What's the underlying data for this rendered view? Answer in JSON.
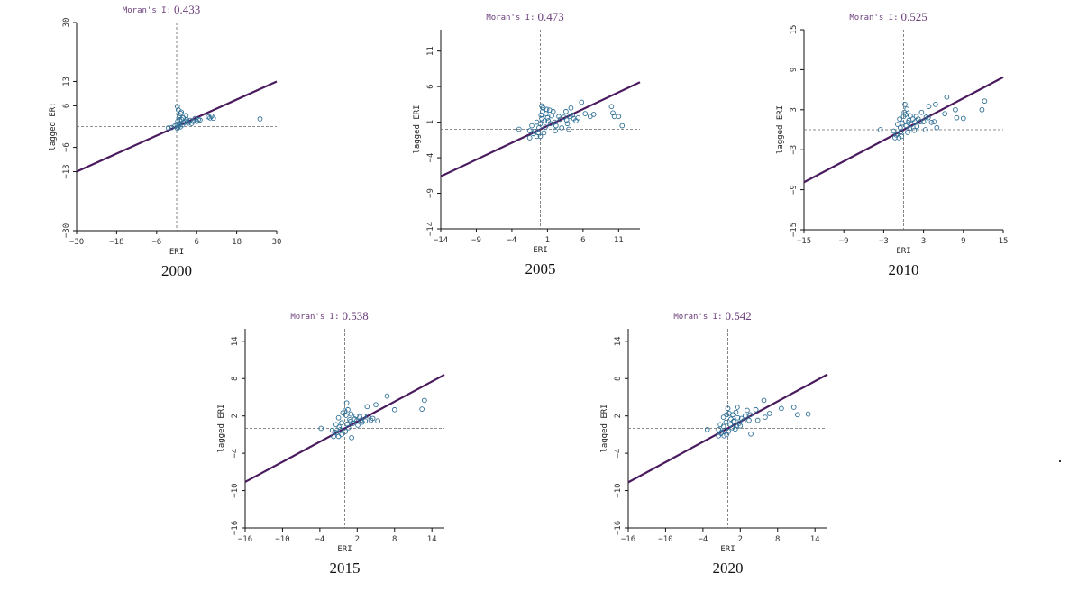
{
  "chart_data": [
    {
      "type": "scatter",
      "year": "2000",
      "title_label": "Moran's I:",
      "moran_i": "0.433",
      "xlabel": "ERI",
      "ylabel": "lagged ERI",
      "caption": "2000",
      "xlim": [
        -30,
        30
      ],
      "ylim": [
        -30,
        30
      ],
      "xticks": [
        -30,
        -18,
        -6,
        6,
        18,
        30
      ],
      "yticks": [
        -30,
        -13,
        -6,
        6,
        13,
        30
      ],
      "ytick_labels": [
        "-30",
        "-13",
        "-6",
        "6",
        "13",
        "30"
      ],
      "ylabel_display": "lagged ER:",
      "slope": 0.433,
      "points": [
        [
          0.2,
          5.8
        ],
        [
          0.5,
          4.8
        ],
        [
          1.2,
          3.8
        ],
        [
          0.8,
          3.2
        ],
        [
          2,
          2.5
        ],
        [
          1.5,
          2
        ],
        [
          3,
          2
        ],
        [
          2.5,
          1.6
        ],
        [
          4,
          1.8
        ],
        [
          5,
          1.5
        ],
        [
          6,
          1.5
        ],
        [
          9.5,
          2.8
        ],
        [
          10,
          2.5
        ],
        [
          11,
          2.4
        ],
        [
          10.5,
          3
        ],
        [
          0.3,
          1.5
        ],
        [
          0.1,
          0.6
        ],
        [
          0.6,
          0.3
        ],
        [
          1,
          0.9
        ],
        [
          -0.5,
          0.2
        ],
        [
          -1.5,
          -0.3
        ],
        [
          -2.5,
          -0.4
        ],
        [
          0.4,
          -0.2
        ],
        [
          1.8,
          0.5
        ],
        [
          3.5,
          1
        ],
        [
          4.5,
          0.9
        ],
        [
          2.2,
          1.1
        ],
        [
          6.5,
          2
        ],
        [
          7,
          1.9
        ],
        [
          25,
          2.2
        ],
        [
          0.7,
          2.6
        ],
        [
          1.4,
          4.2
        ],
        [
          0.9,
          1.8
        ],
        [
          2.8,
          3.2
        ],
        [
          3.2,
          1.3
        ],
        [
          5.5,
          2.3
        ],
        [
          1.1,
          -0.1
        ],
        [
          0.2,
          -0.5
        ]
      ]
    },
    {
      "type": "scatter",
      "year": "2005",
      "title_label": "Moran's I:",
      "moran_i": "0.473",
      "xlabel": "ERI",
      "ylabel": "lagged ERI",
      "caption": "2005",
      "xlim": [
        -14,
        14
      ],
      "ylim": [
        -14,
        14
      ],
      "xticks": [
        -14,
        -9,
        -4,
        1,
        6,
        11
      ],
      "yticks": [
        -14,
        -9,
        -4,
        1,
        6,
        11
      ],
      "ytick_labels": [
        "-14",
        "-9",
        "-4",
        "1",
        "6",
        "11"
      ],
      "ylabel_display": "lagged ERI",
      "slope": 0.473,
      "points": [
        [
          -3,
          0
        ],
        [
          -1.5,
          -0.2
        ],
        [
          -1.5,
          -1.2
        ],
        [
          -1,
          -0.6
        ],
        [
          -0.5,
          -1
        ],
        [
          0,
          -1
        ],
        [
          -0.2,
          0.2
        ],
        [
          0,
          0.8
        ],
        [
          -0.5,
          1
        ],
        [
          0.2,
          1.5
        ],
        [
          0.1,
          2
        ],
        [
          0.3,
          2.5
        ],
        [
          0.2,
          3.3
        ],
        [
          0.4,
          3
        ],
        [
          0.8,
          2.2
        ],
        [
          0.6,
          1.2
        ],
        [
          1,
          1.6
        ],
        [
          1.3,
          2.7
        ],
        [
          1.6,
          1.9
        ],
        [
          1.8,
          2.5
        ],
        [
          2,
          1
        ],
        [
          2.2,
          0.5
        ],
        [
          2.1,
          -0.2
        ],
        [
          2.6,
          1.8
        ],
        [
          3,
          0.2
        ],
        [
          3.3,
          1.7
        ],
        [
          3.6,
          2.5
        ],
        [
          3.7,
          1.3
        ],
        [
          3.8,
          0.8
        ],
        [
          4,
          0
        ],
        [
          4.2,
          1.8
        ],
        [
          4.3,
          3
        ],
        [
          4.5,
          2
        ],
        [
          4.7,
          1.5
        ],
        [
          5,
          1.2
        ],
        [
          5.3,
          1.6
        ],
        [
          5.8,
          3.8
        ],
        [
          6.3,
          2.2
        ],
        [
          7,
          1.8
        ],
        [
          7.5,
          2.1
        ],
        [
          10,
          3.2
        ],
        [
          10.2,
          2.3
        ],
        [
          10.4,
          1.8
        ],
        [
          11,
          1.8
        ],
        [
          11.5,
          0.5
        ],
        [
          -0.8,
          -0.3
        ],
        [
          -1.2,
          0.5
        ],
        [
          0.5,
          -0.5
        ],
        [
          1.4,
          0.8
        ],
        [
          2.8,
          1.4
        ],
        [
          0.7,
          0.3
        ],
        [
          -0.3,
          -0.5
        ],
        [
          0.9,
          2.8
        ],
        [
          1.1,
          1.2
        ]
      ]
    },
    {
      "type": "scatter",
      "year": "2010",
      "title_label": "Moran's I:",
      "moran_i": "0.525",
      "xlabel": "ERI",
      "ylabel": "lagged ERI",
      "caption": "2010",
      "xlim": [
        -15,
        15
      ],
      "ylim": [
        -15,
        15
      ],
      "xticks": [
        -15,
        -9,
        -3,
        3,
        9,
        15
      ],
      "yticks": [
        -15,
        -9,
        -3,
        3,
        9,
        15
      ],
      "ytick_labels": [
        "-15",
        "-9",
        "-3",
        "3",
        "9",
        "15"
      ],
      "ylabel_display": "lagged ERI",
      "slope": 0.525,
      "points": [
        [
          -3.5,
          0
        ],
        [
          -1.5,
          -0.2
        ],
        [
          -1.3,
          -1.2
        ],
        [
          -1,
          -0.6
        ],
        [
          -0.7,
          -1.2
        ],
        [
          -0.3,
          -1
        ],
        [
          -0.5,
          0.3
        ],
        [
          -0.2,
          1
        ],
        [
          -0.6,
          1.6
        ],
        [
          0,
          2
        ],
        [
          0.1,
          2.6
        ],
        [
          0.2,
          3.8
        ],
        [
          0.5,
          3.1
        ],
        [
          0.3,
          2.3
        ],
        [
          0.8,
          1.4
        ],
        [
          1,
          2.1
        ],
        [
          1.2,
          0.8
        ],
        [
          1.4,
          1.6
        ],
        [
          1.7,
          1.2
        ],
        [
          2,
          0.5
        ],
        [
          2.5,
          1.2
        ],
        [
          2.7,
          2.6
        ],
        [
          3,
          1.2
        ],
        [
          3.3,
          0
        ],
        [
          3.4,
          1.9
        ],
        [
          3.7,
          1.8
        ],
        [
          3.8,
          3.5
        ],
        [
          4.2,
          1.1
        ],
        [
          4.6,
          1.2
        ],
        [
          4.8,
          3.8
        ],
        [
          5,
          0.3
        ],
        [
          6.5,
          4.9
        ],
        [
          6.2,
          2.4
        ],
        [
          7.8,
          3
        ],
        [
          8,
          1.8
        ],
        [
          9,
          1.7
        ],
        [
          11.8,
          3
        ],
        [
          12.2,
          4.3
        ],
        [
          -0.9,
          0.8
        ],
        [
          0.6,
          -0.4
        ],
        [
          0.9,
          0.2
        ],
        [
          1.6,
          -0.1
        ],
        [
          2.2,
          1.6
        ],
        [
          -0.4,
          -0.3
        ],
        [
          0.4,
          0.6
        ],
        [
          1.9,
          2
        ],
        [
          -1.1,
          -0.8
        ],
        [
          0.7,
          1.1
        ]
      ]
    },
    {
      "type": "scatter",
      "year": "2015",
      "title_label": "Moran's I:",
      "moran_i": "0.538",
      "xlabel": "ERI",
      "ylabel": "lagged ERI",
      "caption": "2015",
      "xlim": [
        -16,
        16
      ],
      "ylim": [
        -16,
        16
      ],
      "xticks": [
        -16,
        -10,
        -4,
        2,
        8,
        14
      ],
      "yticks": [
        -16,
        -10,
        -4,
        2,
        8,
        14
      ],
      "ytick_labels": [
        "-16",
        "-10",
        "-4",
        "2",
        "8",
        "14"
      ],
      "ylabel_display": "lagged ERI",
      "slope": 0.538,
      "points": [
        [
          -3.8,
          0
        ],
        [
          -2,
          -0.3
        ],
        [
          -1.8,
          -1.3
        ],
        [
          -1.3,
          -0.7
        ],
        [
          -1,
          -1.3
        ],
        [
          -0.5,
          -1
        ],
        [
          -0.9,
          0.2
        ],
        [
          -0.5,
          0.9
        ],
        [
          -1,
          1.7
        ],
        [
          -0.3,
          2.5
        ],
        [
          0,
          2.8
        ],
        [
          0.3,
          4.1
        ],
        [
          0.5,
          3
        ],
        [
          0.2,
          2.1
        ],
        [
          0.8,
          1.4
        ],
        [
          1,
          2.3
        ],
        [
          1.3,
          0.8
        ],
        [
          1.6,
          1.5
        ],
        [
          1.9,
          1.2
        ],
        [
          2.1,
          0.5
        ],
        [
          2.6,
          1.3
        ],
        [
          3,
          2
        ],
        [
          3.3,
          1.2
        ],
        [
          3.6,
          3.5
        ],
        [
          3.8,
          2
        ],
        [
          4.2,
          1.3
        ],
        [
          4.5,
          1.6
        ],
        [
          5,
          3.8
        ],
        [
          5.3,
          1.2
        ],
        [
          6.8,
          5.2
        ],
        [
          8,
          3
        ],
        [
          12.4,
          3.1
        ],
        [
          12.8,
          4.5
        ],
        [
          -1.4,
          0.6
        ],
        [
          0.1,
          -0.5
        ],
        [
          0.6,
          0.1
        ],
        [
          1.1,
          -1.5
        ],
        [
          2.4,
          1.8
        ],
        [
          -0.7,
          -0.2
        ],
        [
          0.4,
          0.7
        ],
        [
          1.8,
          2
        ],
        [
          -1.6,
          -0.6
        ],
        [
          0.9,
          1.1
        ],
        [
          2.8,
          1
        ]
      ]
    },
    {
      "type": "scatter",
      "year": "2020",
      "title_label": "Moran's I:",
      "moran_i": "0.542",
      "xlabel": "ERI",
      "ylabel": "lagged ERI",
      "caption": "2020",
      "xlim": [
        -16,
        16
      ],
      "ylim": [
        -16,
        16
      ],
      "xticks": [
        -16,
        -10,
        -4,
        2,
        8,
        14
      ],
      "yticks": [
        -16,
        -10,
        -4,
        2,
        8,
        14
      ],
      "ytick_labels": [
        "-16",
        "-10",
        "-4",
        "2",
        "8",
        "14"
      ],
      "ylabel_display": "lagged ERI",
      "slope": 0.542,
      "points": [
        [
          -3.3,
          -0.2
        ],
        [
          -1.5,
          -0.2
        ],
        [
          -1.5,
          -1.2
        ],
        [
          -1,
          -0.6
        ],
        [
          -0.6,
          -1.2
        ],
        [
          -0.2,
          -1
        ],
        [
          -0.7,
          0.3
        ],
        [
          -0.3,
          1
        ],
        [
          -0.7,
          1.8
        ],
        [
          -0.2,
          2.2
        ],
        [
          0,
          3.2
        ],
        [
          0.2,
          2.4
        ],
        [
          0.5,
          1.5
        ],
        [
          0.8,
          2.2
        ],
        [
          1,
          1.2
        ],
        [
          1.3,
          2.6
        ],
        [
          1.5,
          3.4
        ],
        [
          1.6,
          1.7
        ],
        [
          1.8,
          0.8
        ],
        [
          2,
          0.4
        ],
        [
          2.5,
          1.2
        ],
        [
          2.8,
          2
        ],
        [
          3.1,
          2.9
        ],
        [
          3.4,
          1.3
        ],
        [
          3.6,
          2.2
        ],
        [
          3.7,
          -0.9
        ],
        [
          4.5,
          3
        ],
        [
          4.8,
          1.3
        ],
        [
          5.8,
          4.5
        ],
        [
          6,
          1.8
        ],
        [
          6.7,
          2.4
        ],
        [
          8.6,
          3.2
        ],
        [
          10.6,
          3.4
        ],
        [
          11.2,
          2.2
        ],
        [
          12.9,
          2.3
        ],
        [
          -1.2,
          0.6
        ],
        [
          0.1,
          -0.5
        ],
        [
          0.7,
          0.1
        ],
        [
          1.2,
          -0.1
        ],
        [
          2.2,
          1.6
        ],
        [
          -0.5,
          -0.3
        ],
        [
          0.4,
          0.6
        ],
        [
          1.4,
          0.4
        ],
        [
          -1.1,
          -0.8
        ],
        [
          0.9,
          1.1
        ]
      ]
    }
  ]
}
